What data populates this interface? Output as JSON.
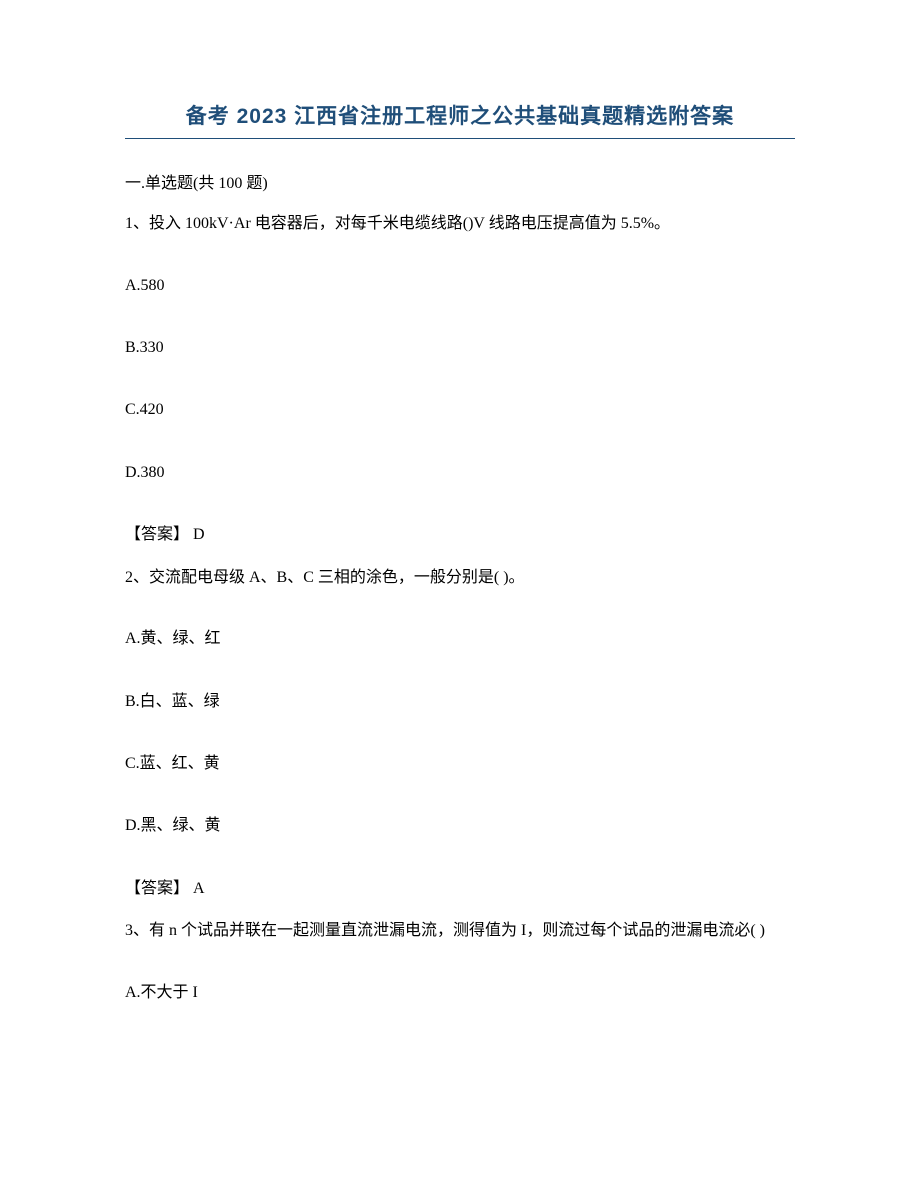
{
  "title": "备考 2023 江西省注册工程师之公共基础真题精选附答案",
  "section_header": "一.单选题(共 100 题)",
  "questions": [
    {
      "stem": "1、投入 100kV·Ar 电容器后，对每千米电缆线路()V 线路电压提高值为 5.5%。",
      "options": {
        "a": "A.580",
        "b": "B.330",
        "c": "C.420",
        "d": "D.380"
      },
      "answer": "【答案】 D"
    },
    {
      "stem": "2、交流配电母级 A、B、C 三相的涂色，一般分别是( )。",
      "options": {
        "a": "A.黄、绿、红",
        "b": "B.白、蓝、绿",
        "c": "C.蓝、红、黄",
        "d": "D.黑、绿、黄"
      },
      "answer": "【答案】 A"
    },
    {
      "stem": "3、有 n 个试品并联在一起测量直流泄漏电流，测得值为 I，则流过每个试品的泄漏电流必( )",
      "options": {
        "a": "A.不大于 I"
      },
      "answer": ""
    }
  ]
}
